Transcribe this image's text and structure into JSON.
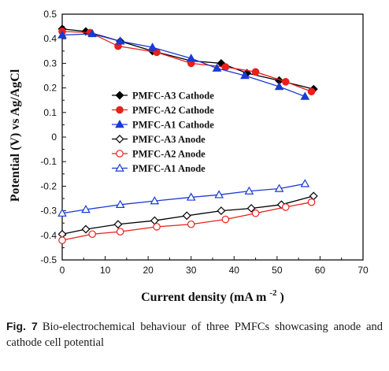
{
  "chart_data": {
    "type": "line",
    "xlabel": "Current density (mA m",
    "xlabel_sup": "-2",
    "xlabel_close": ")",
    "ylabel": "Potential (V) vs Ag/AgCl",
    "xlim": [
      0,
      70
    ],
    "ylim": [
      -0.5,
      0.5
    ],
    "x_ticks": [
      "0",
      "10",
      "20",
      "30",
      "40",
      "50",
      "60",
      "70"
    ],
    "y_ticks": [
      "-0.5",
      "-0.4",
      "-0.3",
      "-0.2",
      "-0.1",
      "0",
      "0.1",
      "0.2",
      "0.3",
      "0.4",
      "0.5"
    ],
    "grid": false,
    "legend_position": "center-left",
    "series": [
      {
        "name": "PMFC-A3 Cathode",
        "color": "#000000",
        "marker": "diamond",
        "filled": true,
        "x": [
          0,
          5.5,
          13.5,
          21,
          30,
          37,
          43,
          50.5,
          58.5
        ],
        "y": [
          0.44,
          0.43,
          0.39,
          0.35,
          0.31,
          0.3,
          0.26,
          0.23,
          0.195
        ]
      },
      {
        "name": "PMFC-A2 Cathode",
        "color": "#e8201b",
        "marker": "circle",
        "filled": true,
        "x": [
          0,
          6.5,
          13,
          22,
          30,
          38,
          45,
          52,
          58
        ],
        "y": [
          0.43,
          0.425,
          0.37,
          0.345,
          0.3,
          0.285,
          0.265,
          0.225,
          0.185
        ]
      },
      {
        "name": "PMFC-A1 Cathode",
        "color": "#1a3ad6",
        "marker": "triangle",
        "filled": true,
        "x": [
          0,
          7,
          13.5,
          21,
          30,
          36,
          42.5,
          50.5,
          56.5
        ],
        "y": [
          0.415,
          0.42,
          0.39,
          0.365,
          0.32,
          0.28,
          0.25,
          0.205,
          0.165
        ]
      },
      {
        "name": "PMFC-A3 Anode",
        "color": "#000000",
        "marker": "diamond",
        "filled": false,
        "x": [
          0,
          5.5,
          13,
          21.5,
          29,
          37,
          44,
          51,
          58.5
        ],
        "y": [
          -0.395,
          -0.375,
          -0.355,
          -0.34,
          -0.32,
          -0.3,
          -0.29,
          -0.275,
          -0.24
        ]
      },
      {
        "name": "PMFC-A2 Anode",
        "color": "#e8201b",
        "marker": "circle",
        "filled": false,
        "x": [
          0,
          7,
          13.5,
          22,
          30,
          38,
          45,
          52,
          58
        ],
        "y": [
          -0.42,
          -0.395,
          -0.385,
          -0.365,
          -0.355,
          -0.335,
          -0.31,
          -0.285,
          -0.265
        ]
      },
      {
        "name": "PMFC-A1 Anode",
        "color": "#1a3ad6",
        "marker": "triangle",
        "filled": false,
        "x": [
          0,
          5.5,
          13.5,
          21.5,
          30,
          36.5,
          43.5,
          50.5,
          56.5
        ],
        "y": [
          -0.31,
          -0.295,
          -0.275,
          -0.26,
          -0.245,
          -0.235,
          -0.22,
          -0.21,
          -0.19
        ]
      }
    ]
  },
  "caption": {
    "label": "Fig. 7",
    "text": "Bio-electrochemical behaviour of three PMFCs showcasing anode and cathode cell potential"
  }
}
